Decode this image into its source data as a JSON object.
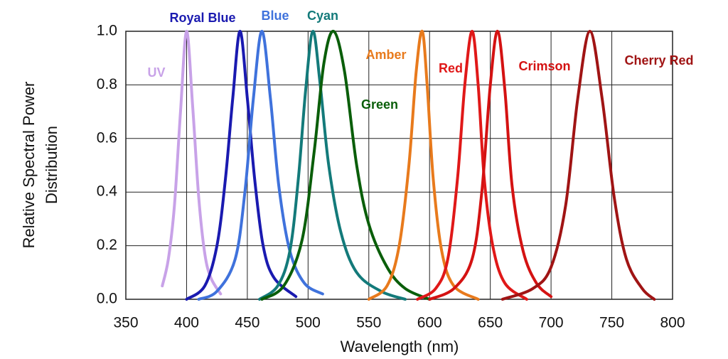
{
  "chart_data": {
    "type": "line",
    "xlabel": "Wavelength (nm)",
    "ylabel": [
      "Relative Spectral Power",
      "Distribution"
    ],
    "xlim": [
      350,
      800
    ],
    "xticks": [
      350,
      400,
      450,
      500,
      550,
      600,
      650,
      700,
      750,
      800
    ],
    "ylim": [
      0,
      1
    ],
    "yticks": [
      {
        "value": 0,
        "label": "0.0"
      },
      0.2,
      0.4,
      0.6,
      0.8,
      {
        "value": 1,
        "label": "1.0"
      }
    ],
    "grid": true,
    "series": [
      {
        "name": "UV",
        "color": "#c8a2e8",
        "x": [
          380,
          385,
          390,
          395,
          400,
          405,
          410,
          415,
          420,
          428
        ],
        "values": [
          0.05,
          0.15,
          0.35,
          0.7,
          1.0,
          0.72,
          0.38,
          0.17,
          0.08,
          0.02
        ]
      },
      {
        "name": "Royal Blue",
        "color": "#1a1ab0",
        "x": [
          400,
          415,
          425,
          432,
          438,
          444,
          450,
          456,
          463,
          472,
          490
        ],
        "values": [
          0.0,
          0.05,
          0.2,
          0.45,
          0.75,
          1.0,
          0.75,
          0.45,
          0.2,
          0.08,
          0.01
        ]
      },
      {
        "name": "Blue",
        "color": "#3f72dc",
        "x": [
          410,
          425,
          440,
          448,
          455,
          462,
          469,
          476,
          485,
          497,
          512
        ],
        "values": [
          0.0,
          0.03,
          0.15,
          0.4,
          0.75,
          1.0,
          0.75,
          0.42,
          0.18,
          0.06,
          0.02
        ]
      },
      {
        "name": "Cyan",
        "color": "#137a7a",
        "x": [
          460,
          475,
          485,
          492,
          498,
          504,
          510,
          517,
          527,
          540,
          560,
          580
        ],
        "values": [
          0.0,
          0.05,
          0.18,
          0.45,
          0.78,
          1.0,
          0.8,
          0.5,
          0.25,
          0.1,
          0.03,
          0.0
        ]
      },
      {
        "name": "Green",
        "color": "#0a5e0a",
        "x": [
          462,
          480,
          495,
          505,
          513,
          521,
          530,
          540,
          550,
          565,
          580,
          600
        ],
        "values": [
          0.0,
          0.05,
          0.22,
          0.55,
          0.88,
          1.0,
          0.85,
          0.5,
          0.28,
          0.12,
          0.04,
          0.0
        ]
      },
      {
        "name": "Amber",
        "color": "#e87a1c",
        "x": [
          550,
          565,
          575,
          583,
          589,
          594,
          598,
          603,
          610,
          620,
          640
        ],
        "values": [
          0.0,
          0.05,
          0.2,
          0.5,
          0.85,
          1.0,
          0.8,
          0.45,
          0.18,
          0.05,
          0.0
        ]
      },
      {
        "name": "Red",
        "color": "#e01818",
        "x": [
          590,
          605,
          615,
          623,
          629,
          635,
          640,
          645,
          652,
          662,
          680
        ],
        "values": [
          0.0,
          0.04,
          0.15,
          0.45,
          0.8,
          1.0,
          0.8,
          0.45,
          0.2,
          0.06,
          0.0
        ]
      },
      {
        "name": "Crimson",
        "color": "#d41212",
        "x": [
          600,
          620,
          635,
          643,
          650,
          656,
          662,
          668,
          677,
          688,
          700
        ],
        "values": [
          0.0,
          0.04,
          0.15,
          0.4,
          0.8,
          1.0,
          0.78,
          0.42,
          0.18,
          0.06,
          0.01
        ]
      },
      {
        "name": "Cherry Red",
        "color": "#a01414",
        "x": [
          660,
          685,
          700,
          712,
          722,
          732,
          742,
          752,
          762,
          775,
          785
        ],
        "values": [
          0.0,
          0.04,
          0.12,
          0.35,
          0.75,
          1.0,
          0.75,
          0.38,
          0.15,
          0.04,
          0.0
        ]
      }
    ]
  }
}
